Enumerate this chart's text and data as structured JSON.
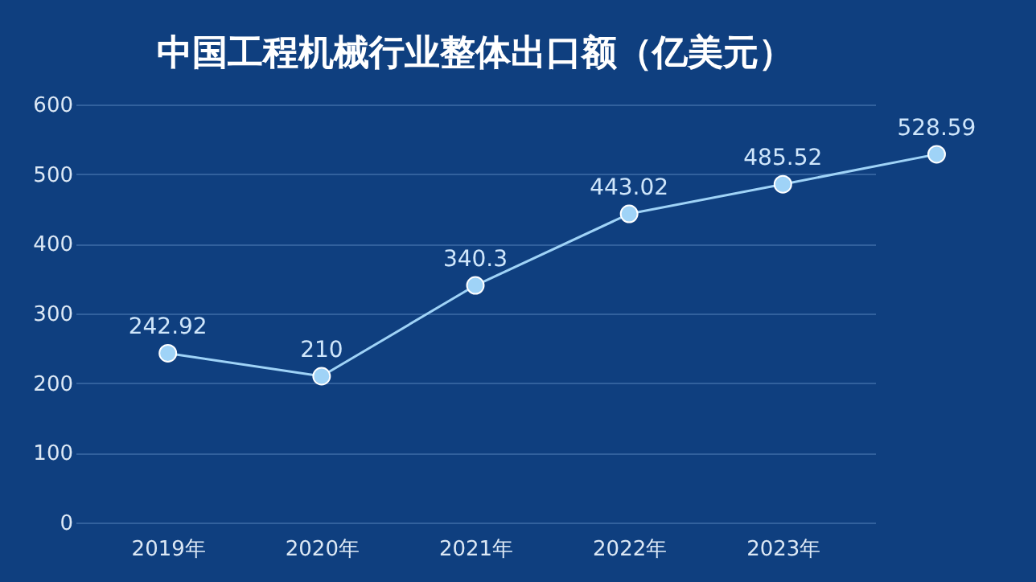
{
  "chart_data": {
    "type": "line",
    "title": "中国工程机械行业整体出口额（亿美元）",
    "categories": [
      "2019年",
      "2020年",
      "2021年",
      "2022年",
      "2023年",
      null
    ],
    "series": [
      {
        "color": "#9fd3f7",
        "values": [
          242.92,
          210,
          340.3,
          443.02,
          485.52,
          528.59
        ]
      }
    ],
    "ylim": [
      0,
      600
    ],
    "yticks": [
      0,
      100,
      200,
      300,
      400,
      500,
      600
    ],
    "grid": "y",
    "marker": "circle",
    "line_style": "solid",
    "data_labels": true
  }
}
